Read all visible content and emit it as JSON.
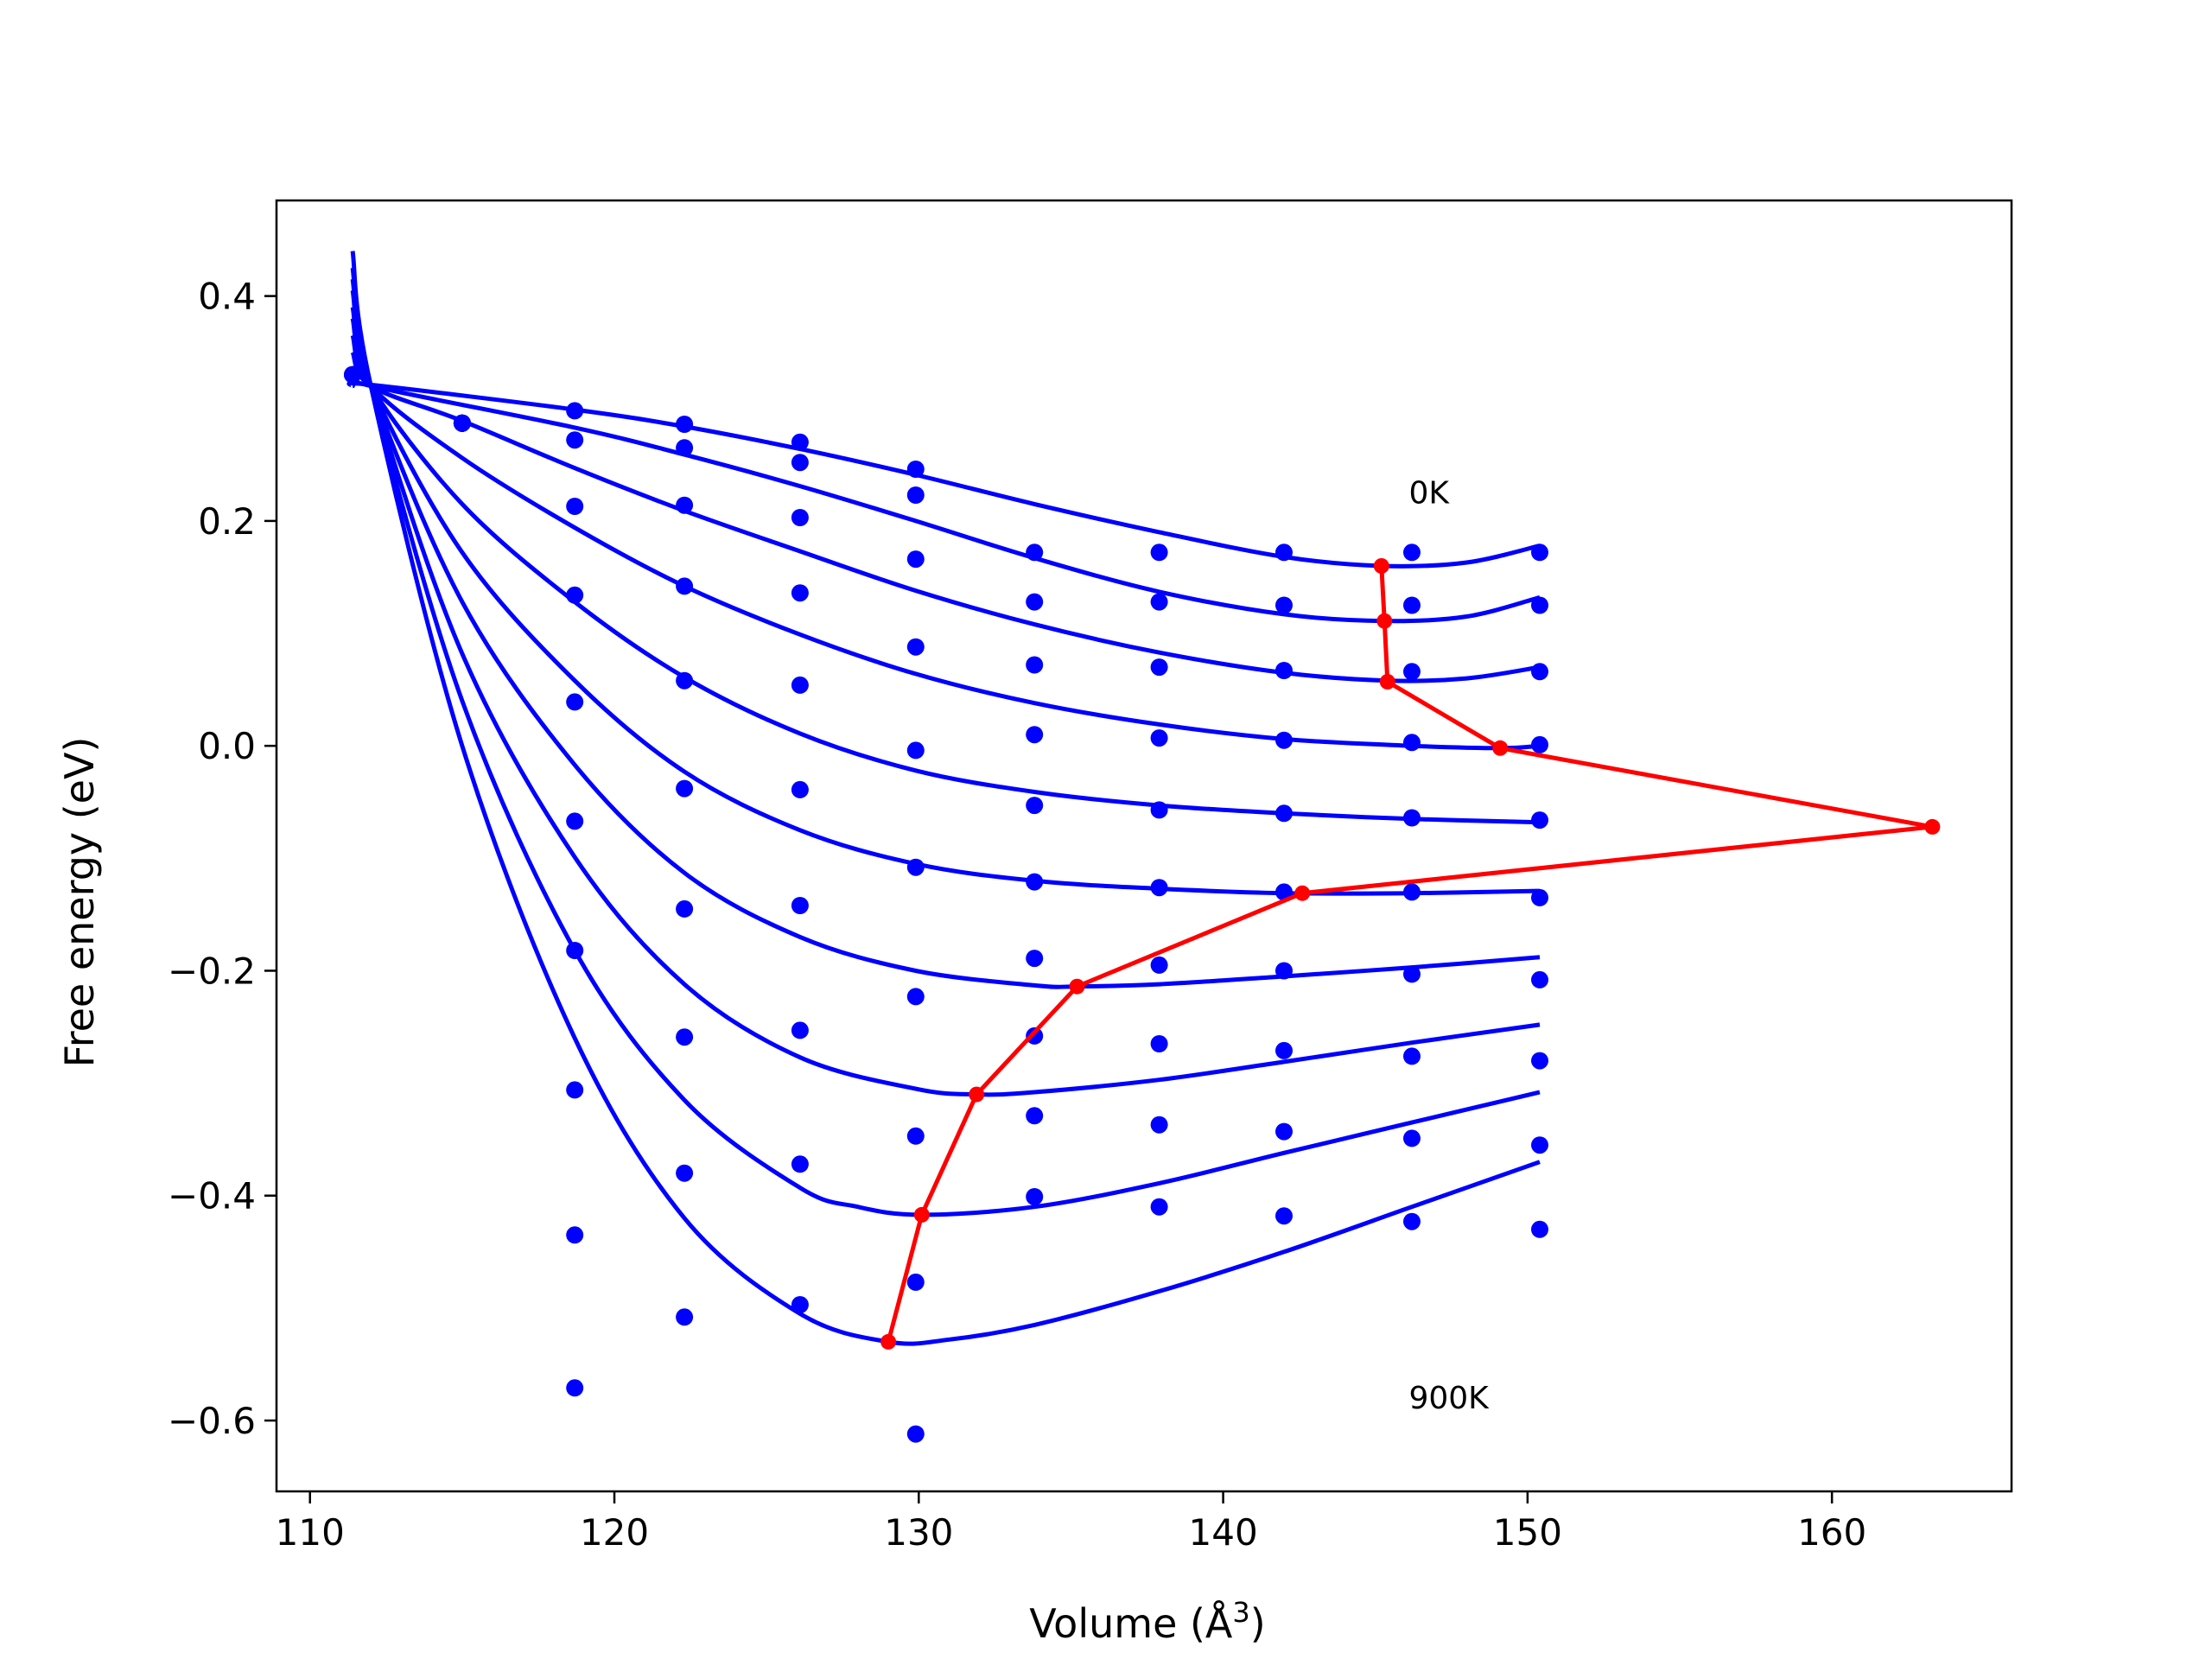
{
  "chart_data": {
    "type": "line",
    "title": "",
    "xlabel": "Volume (Å",
    "xlabel_sup": "3",
    "xlabel_end": ")",
    "ylabel": "Free energy (eV)",
    "xlim": [
      108.9,
      165.9
    ],
    "ylim": [
      -0.663,
      0.485
    ],
    "xticks": [
      110,
      120,
      130,
      140,
      150,
      160
    ],
    "xtick_labels": [
      "110",
      "120",
      "130",
      "140",
      "150",
      "160"
    ],
    "yticks": [
      -0.6,
      -0.4,
      -0.2,
      0.0,
      0.2,
      0.4
    ],
    "ytick_labels": [
      "−0.6",
      "−0.4",
      "−0.2",
      "0.0",
      "0.2",
      "0.4"
    ],
    "grid": false,
    "legend": "none",
    "annotations": [
      {
        "text": "0K",
        "x": 146.1,
        "y": 0.225
      },
      {
        "text": "900K",
        "x": 146.1,
        "y": -0.58
      }
    ],
    "colors": {
      "fit_curves": "#0000ff",
      "data_points": "#0000ff",
      "minimum_path": "#ff0000"
    },
    "data_points": {
      "volumes": [
        111.4,
        115.0,
        118.7,
        122.3,
        126.1,
        129.9,
        133.8,
        137.9,
        142.0,
        146.2,
        150.4
      ],
      "values": [
        [
          0.33,
          0.287,
          0.298,
          0.286,
          0.27,
          0.246,
          0.172,
          0.172,
          0.172,
          0.172,
          0.172
        ],
        [
          0.33,
          0.287,
          0.272,
          0.265,
          0.252,
          0.223,
          0.128,
          0.128,
          0.125,
          0.125,
          0.125
        ],
        [
          0.33,
          0.287,
          0.213,
          0.214,
          0.203,
          0.166,
          0.072,
          0.07,
          0.067,
          0.066,
          0.066
        ],
        [
          0.33,
          0.287,
          0.134,
          0.142,
          0.136,
          0.088,
          0.01,
          0.007,
          0.005,
          0.003,
          0.001
        ],
        [
          0.33,
          0.287,
          0.039,
          0.058,
          0.054,
          -0.004,
          -0.053,
          -0.057,
          -0.06,
          -0.064,
          -0.066
        ],
        [
          0.33,
          0.287,
          -0.067,
          -0.038,
          -0.039,
          -0.108,
          -0.121,
          -0.126,
          -0.13,
          -0.13,
          -0.135
        ],
        [
          0.33,
          0.287,
          -0.182,
          -0.145,
          -0.142,
          -0.223,
          -0.189,
          -0.195,
          -0.2,
          -0.203,
          -0.208
        ],
        [
          0.33,
          0.287,
          -0.306,
          -0.259,
          -0.253,
          -0.347,
          -0.258,
          -0.265,
          -0.271,
          -0.276,
          -0.28
        ],
        [
          0.33,
          0.287,
          -0.435,
          -0.38,
          -0.372,
          -0.477,
          -0.401,
          -0.41,
          -0.418,
          -0.423,
          -0.43
        ],
        [
          0.33,
          0.287,
          -0.571,
          -0.508,
          -0.497,
          -0.612,
          -0.329,
          -0.337,
          -0.343,
          -0.349,
          -0.355
        ]
      ]
    },
    "fit_curves": [
      {
        "x": [
          111.4,
          112.0,
          118.7,
          122.3,
          126.1,
          129.9,
          133.8,
          137.9,
          142.0,
          145.2,
          148.0,
          150.4
        ],
        "y": [
          0.32,
          0.321,
          0.299,
          0.284,
          0.264,
          0.241,
          0.215,
          0.19,
          0.168,
          0.16,
          0.163,
          0.178
        ]
      },
      {
        "x": [
          111.4,
          112.0,
          118.7,
          122.3,
          126.1,
          129.9,
          133.8,
          137.9,
          142.0,
          145.3,
          148.0,
          150.4
        ],
        "y": [
          0.33,
          0.32,
          0.283,
          0.259,
          0.231,
          0.2,
          0.167,
          0.137,
          0.117,
          0.111,
          0.115,
          0.132
        ]
      },
      {
        "x": [
          111.4,
          112.0,
          115.0,
          118.7,
          122.3,
          126.1,
          129.9,
          133.8,
          137.9,
          142.0,
          145.4,
          148.0,
          150.4
        ],
        "y": [
          0.35,
          0.32,
          0.289,
          0.247,
          0.209,
          0.173,
          0.138,
          0.108,
          0.083,
          0.065,
          0.058,
          0.06,
          0.07
        ]
      },
      {
        "x": [
          111.4,
          112.0,
          115.0,
          118.7,
          122.3,
          126.1,
          129.9,
          133.8,
          137.9,
          142.0,
          146.2,
          149.1,
          150.4
        ],
        "y": [
          0.365,
          0.32,
          0.256,
          0.194,
          0.142,
          0.099,
          0.064,
          0.038,
          0.019,
          0.006,
          0.0,
          -0.002,
          0.0
        ]
      },
      {
        "x": [
          111.4,
          112.0,
          115.0,
          118.7,
          122.3,
          126.1,
          129.9,
          133.8,
          137.9,
          142.0,
          146.2,
          150.4
        ],
        "y": [
          0.38,
          0.32,
          0.215,
          0.128,
          0.061,
          0.011,
          -0.022,
          -0.041,
          -0.053,
          -0.06,
          -0.065,
          -0.068
        ]
      },
      {
        "x": [
          111.4,
          112.0,
          115.0,
          118.7,
          122.3,
          126.1,
          129.9,
          133.8,
          137.9,
          142.0,
          146.2,
          150.4
        ],
        "y": [
          0.39,
          0.32,
          0.172,
          0.058,
          -0.023,
          -0.075,
          -0.105,
          -0.12,
          -0.127,
          -0.131,
          -0.131,
          -0.129
        ]
      },
      {
        "x": [
          111.4,
          112.0,
          115.0,
          118.7,
          122.3,
          126.1,
          129.9,
          133.8,
          135.2,
          137.9,
          142.0,
          146.2,
          150.4
        ],
        "y": [
          0.405,
          0.32,
          0.128,
          -0.017,
          -0.113,
          -0.17,
          -0.2,
          -0.213,
          -0.214,
          -0.212,
          -0.205,
          -0.197,
          -0.188
        ]
      },
      {
        "x": [
          111.4,
          112.0,
          115.0,
          118.7,
          122.3,
          126.1,
          129.9,
          131.9,
          133.8,
          137.9,
          142.0,
          146.2,
          150.4
        ],
        "y": [
          0.415,
          0.32,
          0.082,
          -0.099,
          -0.212,
          -0.277,
          -0.305,
          -0.31,
          -0.308,
          -0.297,
          -0.281,
          -0.264,
          -0.248
        ]
      },
      {
        "x": [
          111.4,
          112.0,
          115.0,
          118.7,
          122.3,
          126.1,
          128.0,
          130.1,
          133.8,
          137.9,
          142.0,
          146.2,
          150.4
        ],
        "y": [
          0.425,
          0.32,
          0.04,
          -0.182,
          -0.315,
          -0.393,
          -0.41,
          -0.417,
          -0.41,
          -0.389,
          -0.362,
          -0.335,
          -0.308
        ]
      },
      {
        "x": [
          111.4,
          112.0,
          115.0,
          118.7,
          122.3,
          126.1,
          129.0,
          131.0,
          133.8,
          137.9,
          142.0,
          146.2,
          150.4
        ],
        "y": [
          0.44,
          0.32,
          0.0,
          -0.26,
          -0.42,
          -0.505,
          -0.53,
          -0.528,
          -0.515,
          -0.485,
          -0.45,
          -0.41,
          -0.37
        ]
      }
    ],
    "minimum_path": {
      "x": [
        145.2,
        145.3,
        145.4,
        149.1,
        163.3,
        142.6,
        135.2,
        131.9,
        130.1,
        129.0
      ],
      "y": [
        0.16,
        0.111,
        0.057,
        -0.002,
        -0.072,
        -0.131,
        -0.214,
        -0.31,
        -0.417,
        -0.53
      ]
    }
  }
}
